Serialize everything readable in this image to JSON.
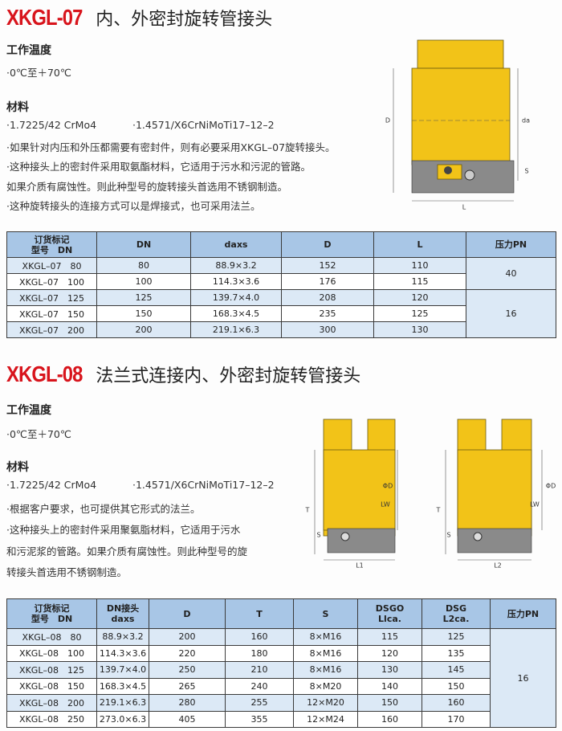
{
  "sections": [
    {
      "title_code": "XKGL-07",
      "title_text": "内、外密封旋转管接头",
      "temperature": {
        "heading": "工作温度",
        "items": [
          "·0℃至＋70℃"
        ]
      },
      "material": {
        "heading": "材料",
        "lines": [
          [
            "·1.7225/42 CrMo4",
            "·1.4571/X6CrNiMoTi17–12–2"
          ],
          [
            "·如果针对内压和外压都需要有密封件，则有必要采用XKGL–07旋转接头。"
          ],
          [
            "·这种接头上的密封件采用取氨酯材料，它适用于污水和污泥的管路。"
          ],
          [
            "如果介质有腐蚀性。则此种型号的旋转接头首选用不锈钢制造。"
          ],
          [
            "·这种旋转接头的连接方式可以是焊接式，也可采用法兰。"
          ]
        ]
      },
      "drawing": {
        "labels": [
          "D",
          "da",
          "S",
          "L"
        ]
      },
      "table": {
        "header": [
          [
            "订货标记",
            "型号　DN"
          ],
          [
            "DN"
          ],
          [
            "daxs"
          ],
          [
            "D"
          ],
          [
            "L"
          ],
          [
            "压力PN"
          ]
        ],
        "rows": [
          [
            "XKGL–07　80",
            "80",
            "88.9×3.2",
            "152",
            "110"
          ],
          [
            "XKGL–07　100",
            "100",
            "114.3×3.6",
            "176",
            "115"
          ],
          [
            "XKGL–07　125",
            "125",
            "139.7×4.0",
            "208",
            "120"
          ],
          [
            "XKGL–07　150",
            "150",
            "168.3×4.5",
            "235",
            "125"
          ],
          [
            "XKGL–07　200",
            "200",
            "219.1×6.3",
            "300",
            "130"
          ]
        ],
        "pressure": [
          "40",
          null,
          "16",
          null,
          null
        ]
      }
    },
    {
      "title_code": "XKGL-08",
      "title_text": "法兰式连接内、外密封旋转管接头",
      "temperature": {
        "heading": "工作温度",
        "items": [
          "·0℃至＋70℃"
        ]
      },
      "material": {
        "heading": "材料",
        "lines": [
          [
            "·1.7225/42 CrMo4",
            "·1.4571/X6CrNiMoTi17–12–2"
          ],
          [
            "·根据客户要求，也可提供其它形式的法兰。"
          ],
          [
            "·这种接头上的密封件采用聚氨脂材料，它适用于污水"
          ],
          [
            "和污泥浆的管路。如果介质有腐蚀性。则此种型号的旋"
          ],
          [
            "转接头首选用不锈钢制造。"
          ]
        ]
      },
      "drawing": {
        "labels": [
          "T",
          "S",
          "ΦD",
          "LW",
          "L1",
          "T",
          "S",
          "ΦD",
          "LW",
          "L2"
        ]
      },
      "table": {
        "header": [
          [
            "订货标记",
            "型号　DN"
          ],
          [
            "DN接头",
            "daxs"
          ],
          [
            "D"
          ],
          [
            "T"
          ],
          [
            "S"
          ],
          [
            "DSGO",
            "Llca."
          ],
          [
            "DSG",
            "L2ca."
          ],
          [
            "压力PN"
          ]
        ],
        "rows": [
          [
            "XKGL–08　80",
            "88.9×3.2",
            "200",
            "160",
            "8×M16",
            "115",
            "125"
          ],
          [
            "XKGL–08　100",
            "114.3×3.6",
            "220",
            "180",
            "8×M16",
            "120",
            "135"
          ],
          [
            "XKGL–08　125",
            "139.7×4.0",
            "250",
            "210",
            "8×M16",
            "130",
            "145"
          ],
          [
            "XKGL–08　150",
            "168.3×4.5",
            "265",
            "240",
            "8×M20",
            "140",
            "150"
          ],
          [
            "XKGL–08　200",
            "219.1×6.3",
            "280",
            "255",
            "12×M20",
            "150",
            "160"
          ],
          [
            "XKGL–08　250",
            "273.0×6.3",
            "405",
            "355",
            "12×M24",
            "160",
            "170"
          ]
        ],
        "pressure": [
          "16",
          null,
          null,
          null,
          null,
          null
        ]
      }
    }
  ]
}
